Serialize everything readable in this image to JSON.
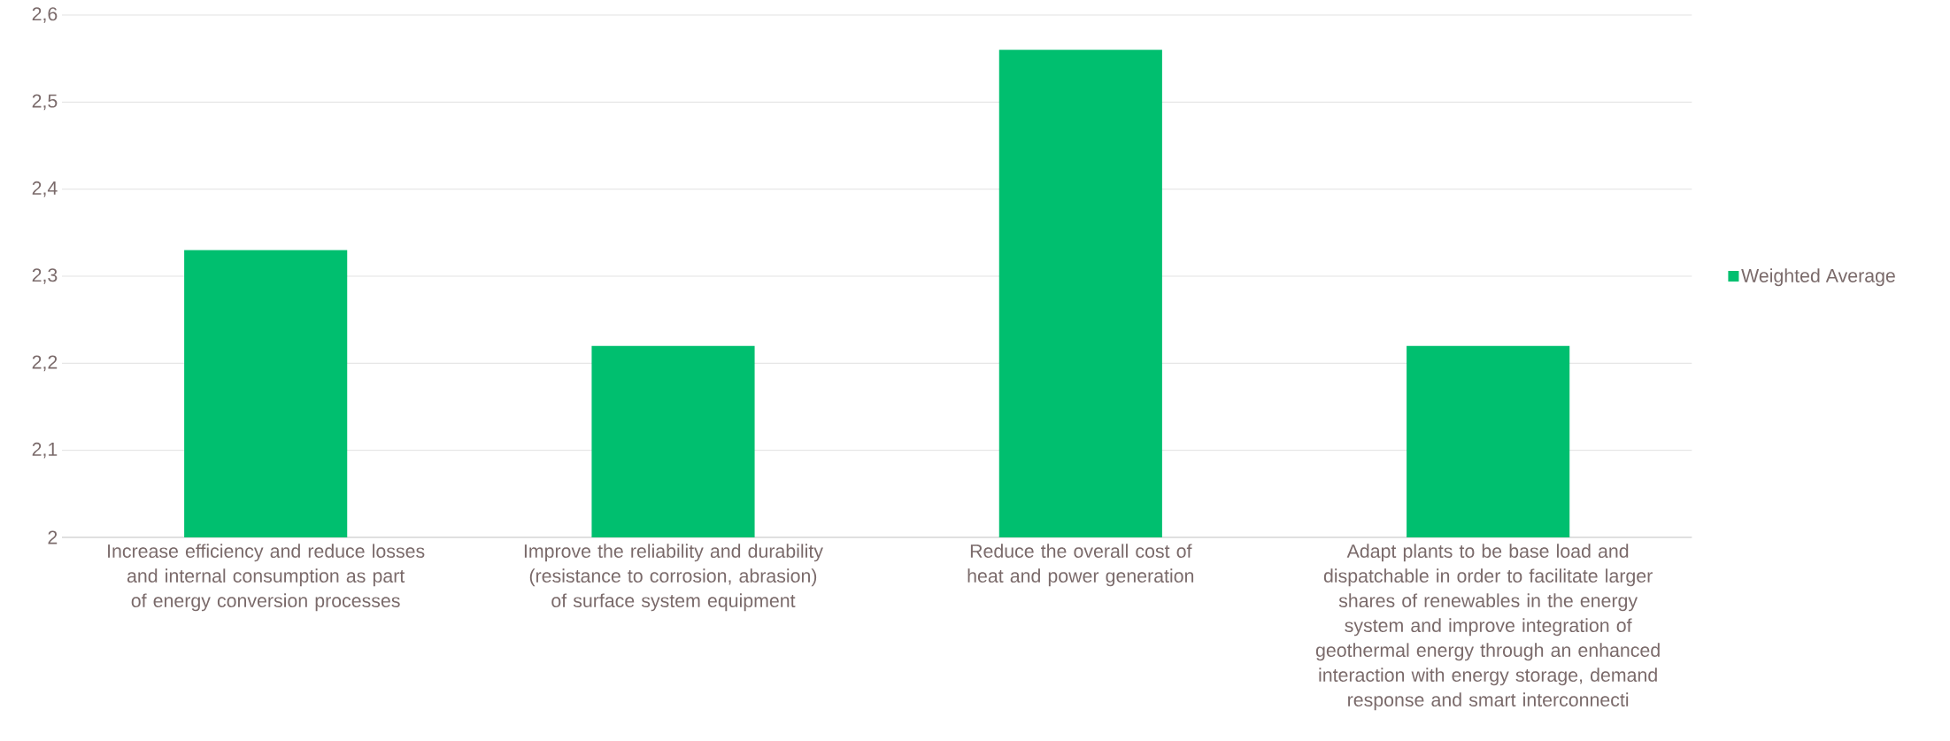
{
  "chart_data": {
    "type": "bar",
    "categories": [
      "Increase efficiency and reduce losses and internal consumption as part of energy conversion processes",
      "Improve the reliability and durability (resistance to corrosion, abrasion) of surface system equipment",
      "Reduce the overall cost of heat and power generation",
      "Adapt plants to be base load and dispatchable in order to facilitate larger shares of renewables in the energy system and improve integration of geothermal energy through an enhanced interaction with energy storage, demand response and smart interconnecti"
    ],
    "series": [
      {
        "name": "Weighted Average",
        "color": "#00bf6f",
        "values": [
          2.33,
          2.22,
          2.56,
          2.22
        ]
      }
    ],
    "ylim": [
      2,
      2.6
    ],
    "yticks": [
      {
        "value": 2,
        "label": "2"
      },
      {
        "value": 2.1,
        "label": "2,1"
      },
      {
        "value": 2.2,
        "label": "2,2"
      },
      {
        "value": 2.3,
        "label": "2,3"
      },
      {
        "value": 2.4,
        "label": "2,4"
      },
      {
        "value": 2.5,
        "label": "2,5"
      },
      {
        "value": 2.6,
        "label": "2,6"
      }
    ],
    "grid": "y",
    "legend": "right"
  }
}
